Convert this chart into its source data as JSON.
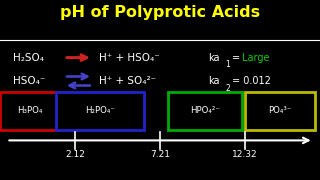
{
  "title": "pH of Polyprotic Acids",
  "title_color": "#FFFF00",
  "bg_color": "#000000",
  "line1_left": "H₂SO₄",
  "line1_right": "H⁺ + HSO₄⁻",
  "line2_left": "HSO₄⁻",
  "line2_right": "H⁺ + SO₄²⁻",
  "box1_label": "H₃PO₄",
  "box1_color": "#CC0000",
  "box2_label": "H₂PO₄⁻",
  "box2_color": "#2222CC",
  "box3_label": "HPO₄²⁻",
  "box3_color": "#00AA00",
  "box4_label": "PO₄³⁻",
  "box4_color": "#BBBB00",
  "tick1": "2.12",
  "tick2": "7.21",
  "tick3": "12.32",
  "text_color": "#FFFFFF",
  "arrow1_color": "#CC2222",
  "arrow2_color": "#4444CC",
  "large_color": "#00CC00"
}
